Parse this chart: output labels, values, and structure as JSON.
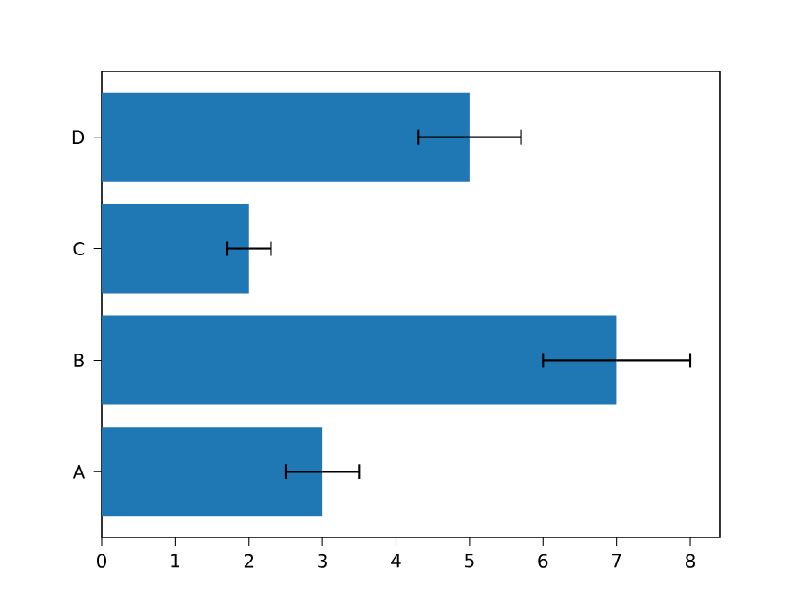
{
  "chart_data": {
    "type": "bar",
    "orientation": "horizontal",
    "categories": [
      "D",
      "C",
      "B",
      "A"
    ],
    "values": [
      5,
      2,
      7,
      3
    ],
    "errors": [
      0.7,
      0.3,
      1,
      0.5
    ],
    "color": "#1f77b4",
    "xlim": [
      0,
      8.4
    ],
    "xticks": [
      0,
      1,
      2,
      3,
      4,
      5,
      6,
      7,
      8
    ]
  }
}
